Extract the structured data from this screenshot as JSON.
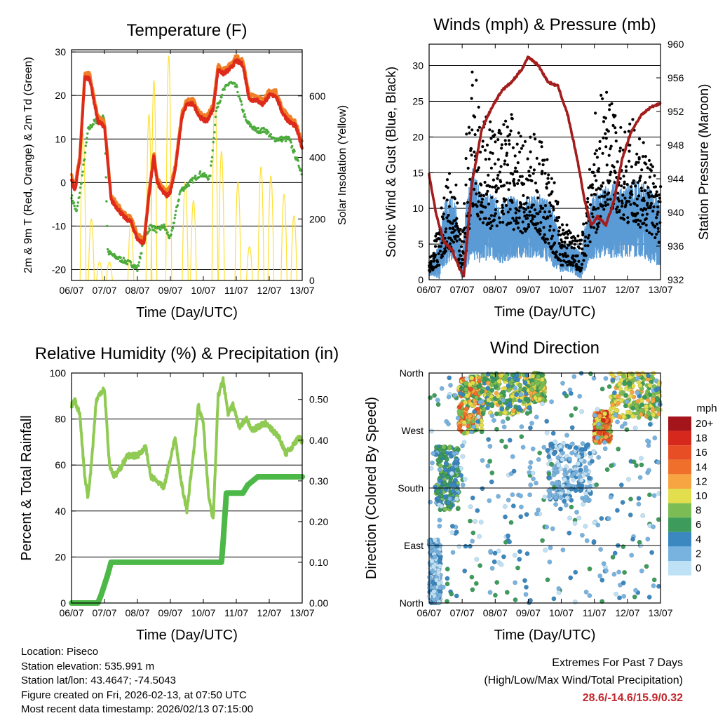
{
  "colors": {
    "temp_2m": "#dd2a1b",
    "temp_9m": "#f07e26",
    "dewpoint": "#4aaa3a",
    "solar": "#ffe033",
    "wind": "#5b9bd5",
    "gust": "#000000",
    "pressure": "#a31d1d",
    "rh": "#8fca52",
    "precip": "#4cb848",
    "extremes": "#c1272d"
  },
  "chart_data": [
    {
      "id": "temperature",
      "type": "line",
      "title": "Temperature (F)",
      "xlabel": "Time (Day/UTC)",
      "ylabel": "2m & 9m T (Red, Orange) & 2m Td (Green)",
      "y2label": "Solar Insolation (Yellow)",
      "x_ticks": [
        "06/07",
        "07/07",
        "08/07",
        "09/07",
        "10/07",
        "11/07",
        "12/07",
        "13/07"
      ],
      "y_ticks": [
        "-20",
        "-10",
        "0",
        "10",
        "20",
        "30"
      ],
      "y2_ticks": [
        "0",
        "200",
        "400",
        "600"
      ],
      "ylim": [
        -22.5,
        30.5
      ],
      "y2lim": [
        0,
        750
      ],
      "grid_y": [
        -20,
        -10,
        0,
        10,
        20,
        30
      ],
      "series": [
        {
          "name": "2m T",
          "x": [
            0,
            0.1,
            0.25,
            0.4,
            0.55,
            0.8,
            1.0,
            1.2,
            1.4,
            1.6,
            1.8,
            2.0,
            2.2,
            2.35,
            2.5,
            2.6,
            2.75,
            2.9,
            3.0,
            3.15,
            3.35,
            3.5,
            3.7,
            3.9,
            4.1,
            4.3,
            4.45,
            4.6,
            4.8,
            5.0,
            5.2,
            5.4,
            5.6,
            5.8,
            6.0,
            6.2,
            6.4,
            6.6,
            6.8,
            7.0
          ],
          "values": [
            1,
            -2,
            5,
            24,
            24,
            14,
            13,
            -4,
            -6,
            -8,
            -9,
            -13,
            -14,
            -3,
            6,
            0,
            -2,
            -3,
            -2,
            3,
            15,
            18,
            18,
            15,
            14,
            17,
            26,
            25,
            26,
            28,
            27,
            19,
            19,
            18,
            20,
            20,
            16,
            14,
            13,
            8
          ]
        },
        {
          "name": "9m T",
          "x": [
            0,
            0.1,
            0.25,
            0.4,
            0.55,
            0.8,
            1.0,
            1.2,
            1.4,
            1.6,
            1.8,
            2.0,
            2.2,
            2.35,
            2.5,
            2.6,
            2.75,
            2.9,
            3.0,
            3.15,
            3.35,
            3.5,
            3.7,
            3.9,
            4.1,
            4.3,
            4.45,
            4.6,
            4.8,
            5.0,
            5.2,
            5.4,
            5.6,
            5.8,
            6.0,
            6.2,
            6.4,
            6.6,
            6.8,
            7.0
          ],
          "values": [
            2,
            -1,
            6,
            25,
            25,
            15,
            14,
            -3,
            -5,
            -7,
            -8,
            -12,
            -13,
            -2,
            7,
            1,
            -1,
            -2,
            -1,
            4,
            16,
            19,
            19,
            16,
            15,
            18,
            27,
            26,
            27,
            29,
            28,
            20,
            20,
            19,
            21,
            21,
            17,
            15,
            14,
            9
          ]
        },
        {
          "name": "2m Td",
          "x": [
            0,
            0.15,
            0.3,
            0.5,
            0.7,
            1.0,
            1.1,
            1.3,
            1.6,
            1.9,
            2.0,
            2.2,
            2.4,
            2.6,
            2.8,
            3.0,
            3.3,
            3.6,
            3.9,
            4.2,
            4.4,
            4.6,
            4.8,
            5.0,
            5.3,
            5.6,
            5.9,
            6.1,
            6.4,
            6.6,
            6.8,
            7.0
          ],
          "values": [
            -3,
            -7,
            0,
            12,
            14,
            15,
            -16,
            -17,
            -18,
            -19,
            -20,
            -13,
            -10,
            -11,
            -10,
            -13,
            -2,
            0,
            2,
            1,
            17,
            21,
            23,
            22,
            14,
            12,
            12,
            10,
            10,
            10,
            6,
            2
          ]
        },
        {
          "name": "Solar",
          "axis": "y2",
          "peaks_x": [
            0.35,
            0.6,
            0.85,
            1.15,
            1.8,
            2.35,
            2.5,
            2.95,
            3.45,
            3.7,
            4.35,
            4.55,
            5.05,
            5.4,
            5.75,
            6.05,
            6.45,
            6.75
          ],
          "peaks_y": [
            480,
            200,
            60,
            60,
            190,
            540,
            650,
            730,
            320,
            260,
            620,
            420,
            320,
            110,
            370,
            340,
            280,
            210
          ]
        }
      ]
    },
    {
      "id": "winds",
      "type": "scatter",
      "title": "Winds (mph) & Pressure (mb)",
      "xlabel": "Time (Day/UTC)",
      "ylabel": "Sonic Wind & Gust (Blue, Black)",
      "y2label": "Station Pressure (Maroon)",
      "x_ticks": [
        "06/07",
        "07/07",
        "08/07",
        "09/07",
        "10/07",
        "11/07",
        "12/07",
        "13/07"
      ],
      "y_ticks": [
        "0",
        "5",
        "10",
        "15",
        "20",
        "25",
        "30"
      ],
      "y2_ticks": [
        "932",
        "936",
        "940",
        "944",
        "948",
        "952",
        "956",
        "960"
      ],
      "ylim": [
        0,
        33
      ],
      "y2lim": [
        932,
        960
      ],
      "grid_y": [
        5,
        10,
        15,
        20,
        25,
        30
      ],
      "series": [
        {
          "name": "Wind",
          "envelope_x": [
            0,
            0.3,
            0.5,
            0.8,
            1.0,
            1.1,
            1.3,
            1.6,
            1.9,
            2.2,
            2.5,
            2.8,
            3.1,
            3.4,
            3.7,
            4.0,
            4.3,
            4.6,
            4.8,
            5.0,
            5.3,
            5.6,
            5.9,
            6.2,
            6.5,
            6.8,
            7.0
          ],
          "low": [
            0.5,
            0,
            2,
            3,
            0,
            1,
            3,
            2,
            3,
            2,
            3,
            3,
            3,
            3,
            2,
            1,
            1,
            0,
            2,
            3,
            3,
            3,
            3,
            3,
            3,
            2,
            2
          ],
          "high": [
            2,
            5,
            12,
            11,
            3,
            10,
            16,
            12,
            12,
            11,
            12,
            11,
            12,
            12,
            11,
            5,
            5,
            4,
            10,
            12,
            13,
            14,
            13,
            14,
            14,
            12,
            11
          ]
        },
        {
          "name": "Gust",
          "envelope_x": [
            0,
            0.3,
            0.5,
            0.8,
            1.0,
            1.1,
            1.3,
            1.6,
            1.9,
            2.2,
            2.5,
            2.8,
            3.1,
            3.4,
            3.7,
            4.0,
            4.3,
            4.6,
            4.8,
            5.0,
            5.3,
            5.6,
            5.9,
            6.2,
            6.5,
            6.8,
            7.0
          ],
          "low": [
            1,
            2,
            4,
            4,
            1,
            3,
            10,
            8,
            7,
            8,
            7,
            6,
            8,
            6,
            4,
            2,
            2,
            1,
            4,
            6,
            10,
            10,
            8,
            8,
            7,
            6,
            5
          ],
          "high": [
            3,
            8,
            16,
            14,
            5,
            20,
            31,
            25,
            22,
            22,
            24,
            20,
            21,
            20,
            16,
            8,
            9,
            6,
            12,
            24,
            28,
            24,
            21,
            23,
            20,
            17,
            15
          ]
        },
        {
          "name": "Pressure",
          "axis": "y2",
          "x": [
            0,
            0.2,
            0.45,
            0.7,
            0.9,
            1.05,
            1.3,
            1.6,
            1.9,
            2.2,
            2.5,
            2.8,
            3.0,
            3.3,
            3.6,
            3.9,
            4.2,
            4.5,
            4.7,
            4.9,
            5.1,
            5.35,
            5.6,
            5.85,
            6.1,
            6.4,
            6.7,
            7.0
          ],
          "values": [
            944.5,
            940,
            936.5,
            935.5,
            933.5,
            932.5,
            943.5,
            950,
            952.5,
            954.5,
            955.5,
            957,
            958.5,
            957.5,
            955.5,
            955,
            951.5,
            946,
            941.5,
            938.5,
            939.5,
            938.5,
            941.5,
            946.5,
            949.5,
            951.5,
            952.5,
            953
          ]
        }
      ]
    },
    {
      "id": "humidity",
      "type": "line",
      "title": "Relative Humidity (%) & Precipitation (in)",
      "xlabel": "Time (Day/UTC)",
      "ylabel": "Percent & Total Rainfall",
      "x_ticks": [
        "06/07",
        "07/07",
        "08/07",
        "09/07",
        "10/07",
        "11/07",
        "12/07",
        "13/07"
      ],
      "y_ticks": [
        "0",
        "20",
        "40",
        "60",
        "80",
        "100"
      ],
      "y2_ticks": [
        "0.00",
        "0.10",
        "0.20",
        "0.30",
        "0.40",
        "0.50"
      ],
      "ylim": [
        0,
        100
      ],
      "y2lim": [
        0,
        0.565
      ],
      "grid_y": [
        20,
        40,
        60,
        80
      ],
      "series": [
        {
          "name": "RH",
          "x": [
            0,
            0.1,
            0.25,
            0.4,
            0.5,
            0.6,
            0.75,
            0.9,
            1.0,
            1.15,
            1.3,
            1.45,
            1.7,
            2.0,
            2.25,
            2.4,
            2.6,
            2.8,
            3.0,
            3.15,
            3.3,
            3.5,
            3.7,
            3.85,
            4.0,
            4.15,
            4.3,
            4.45,
            4.6,
            4.75,
            4.9,
            5.1,
            5.3,
            5.5,
            5.7,
            5.9,
            6.1,
            6.3,
            6.5,
            6.7,
            6.9,
            7.0
          ],
          "values": [
            86,
            88,
            82,
            55,
            46,
            60,
            88,
            92,
            93,
            60,
            55,
            58,
            64,
            64,
            68,
            55,
            53,
            50,
            63,
            72,
            55,
            40,
            65,
            86,
            78,
            48,
            36,
            90,
            97,
            82,
            86,
            76,
            80,
            75,
            77,
            78,
            75,
            72,
            65,
            68,
            72,
            70
          ]
        },
        {
          "name": "Precip",
          "axis": "y2",
          "x": [
            0,
            0.8,
            0.9,
            1.1,
            1.2,
            4.55,
            4.6,
            4.7,
            5.2,
            5.35,
            5.5,
            5.65,
            7.0
          ],
          "values": [
            0,
            0,
            0.02,
            0.07,
            0.1,
            0.1,
            0.15,
            0.27,
            0.27,
            0.29,
            0.3,
            0.31,
            0.31
          ]
        }
      ]
    },
    {
      "id": "direction",
      "type": "scatter",
      "title": "Wind Direction",
      "xlabel": "Time (Day/UTC)",
      "ylabel": "Direction (Colored By Speed)",
      "x_ticks": [
        "06/07",
        "07/07",
        "08/07",
        "09/07",
        "10/07",
        "11/07",
        "12/07",
        "13/07"
      ],
      "y_ticks": [
        "North",
        "West",
        "South",
        "East",
        "North"
      ],
      "ylim": [
        0,
        360
      ],
      "legend": {
        "title": "mph",
        "labels": [
          "20+",
          "18",
          "16",
          "14",
          "12",
          "10",
          "8",
          "6",
          "4",
          "2",
          "0"
        ],
        "colors": [
          "#a3151b",
          "#d7281d",
          "#e84e26",
          "#f06f2b",
          "#f7a543",
          "#e3de4e",
          "#7bbd54",
          "#3d9c5c",
          "#3b87bf",
          "#78b3e0",
          "#bfe1f6"
        ]
      },
      "clusters": [
        {
          "x": [
            0.0,
            0.35
          ],
          "dir": [
            0,
            100
          ],
          "speed": [
            0,
            4
          ]
        },
        {
          "x": [
            0.2,
            0.9
          ],
          "dir": [
            145,
            245
          ],
          "speed": [
            2,
            8
          ]
        },
        {
          "x": [
            0.9,
            1.6
          ],
          "dir": [
            265,
            355
          ],
          "speed": [
            6,
            16
          ]
        },
        {
          "x": [
            1.6,
            3.1
          ],
          "dir": [
            295,
            360
          ],
          "speed": [
            4,
            12
          ]
        },
        {
          "x": [
            3.1,
            3.5
          ],
          "dir": [
            315,
            360
          ],
          "speed": [
            6,
            12
          ]
        },
        {
          "x": [
            3.6,
            4.9
          ],
          "dir": [
            160,
            250
          ],
          "speed": [
            0,
            4
          ]
        },
        {
          "x": [
            5.0,
            5.5
          ],
          "dir": [
            250,
            300
          ],
          "speed": [
            8,
            18
          ]
        },
        {
          "x": [
            5.5,
            7.0
          ],
          "dir": [
            290,
            360
          ],
          "speed": [
            6,
            12
          ]
        },
        {
          "x": [
            0.0,
            7.0
          ],
          "dir": [
            0,
            360
          ],
          "speed": [
            0,
            6
          ]
        }
      ]
    }
  ],
  "info": {
    "location": "Location: Piseco",
    "elevation": "Station elevation: 535.991 m",
    "latlon": "Station lat/lon: 43.4647; -74.5043",
    "created": "Figure created on Fri, 2026-02-13, at 07:50 UTC",
    "timestamp": "Most recent data timestamp: 2026/02/13 07:15:00"
  },
  "extremes": {
    "title": "Extremes For Past 7 Days",
    "subtitle": "(High/Low/Max Wind/Total Precipitation)",
    "values": "28.6/-14.6/15.9/0.32"
  }
}
